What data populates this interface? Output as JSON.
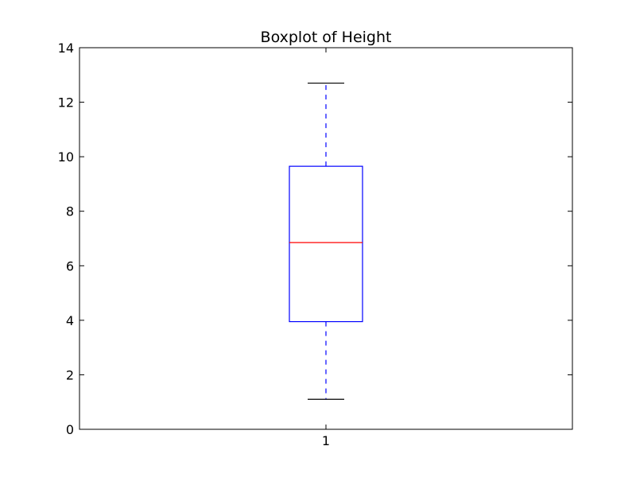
{
  "chart_data": {
    "type": "boxplot",
    "title": "Boxplot of Height",
    "xlabel": "",
    "ylabel": "",
    "categories": [
      "1"
    ],
    "ylim": [
      0,
      14
    ],
    "yticks": [
      0,
      2,
      4,
      6,
      8,
      10,
      12,
      14
    ],
    "boxes": [
      {
        "category": "1",
        "whisker_low": 1.1,
        "q1": 3.95,
        "median": 6.85,
        "q3": 9.65,
        "whisker_high": 12.7
      }
    ],
    "grid": false,
    "colors": {
      "box": "#0000ff",
      "whisker": "#0000ff",
      "caps": "#000000",
      "median": "#ff0000",
      "frame": "#000000"
    }
  }
}
